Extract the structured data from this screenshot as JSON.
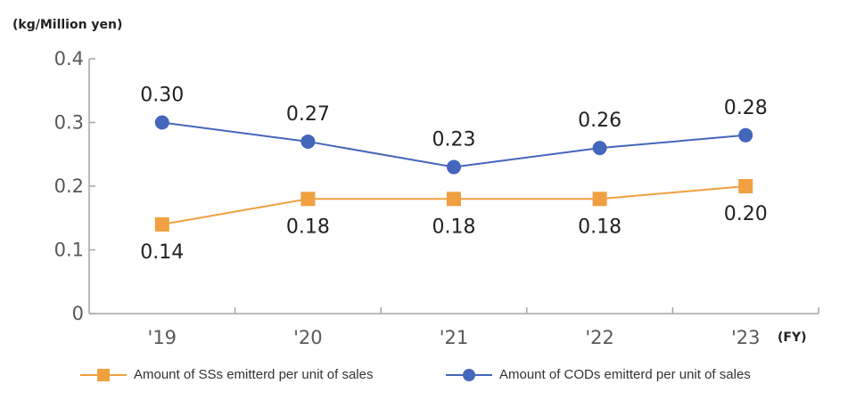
{
  "chart_data": {
    "type": "line",
    "ylabel": "(kg/Million yen)",
    "xlabel": "(FY)",
    "ylim": [
      0,
      0.4
    ],
    "yticks": [
      "0",
      "0.1",
      "0.2",
      "0.3",
      "0.4"
    ],
    "categories": [
      "'19",
      "'20",
      "'21",
      "'22",
      "'23"
    ],
    "series": [
      {
        "name": "Amount of SSs emitterd per unit of sales",
        "color": "#F0A040",
        "marker": "square",
        "values": [
          0.14,
          0.18,
          0.18,
          0.18,
          0.2
        ],
        "labels": [
          "0.14",
          "0.18",
          "0.18",
          "0.18",
          "0.20"
        ]
      },
      {
        "name": "Amount of CODs emitterd per unit of sales",
        "color": "#4466BB",
        "marker": "circle",
        "values": [
          0.3,
          0.27,
          0.23,
          0.26,
          0.28
        ],
        "labels": [
          "0.30",
          "0.27",
          "0.23",
          "0.26",
          "0.28"
        ]
      }
    ],
    "legend": "bottom",
    "grid": false
  }
}
